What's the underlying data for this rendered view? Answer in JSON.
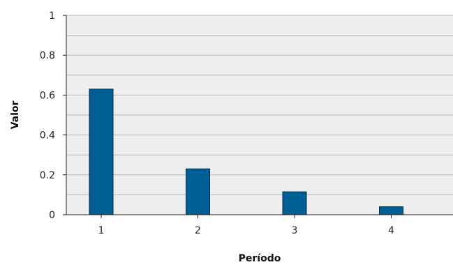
{
  "chart_data": {
    "type": "bar",
    "title": "",
    "xlabel": "Período",
    "ylabel": "Valor",
    "categories": [
      "1",
      "2",
      "3",
      "4"
    ],
    "values": [
      0.63,
      0.23,
      0.115,
      0.04
    ],
    "ylim": [
      0,
      1
    ],
    "yticks": [
      0,
      0.2,
      0.4,
      0.6,
      0.8,
      1
    ],
    "ytick_labels": [
      "0",
      "0.2",
      "0.4",
      "0.6",
      "0.8",
      "1"
    ],
    "grid": true,
    "legend": "none",
    "colors": {
      "bar_fill": "#005f94",
      "bar_stroke": "#0b2a3f",
      "plot_background": "#eeeeee",
      "grid": "#b9b9b9",
      "axis": "#222222"
    }
  }
}
